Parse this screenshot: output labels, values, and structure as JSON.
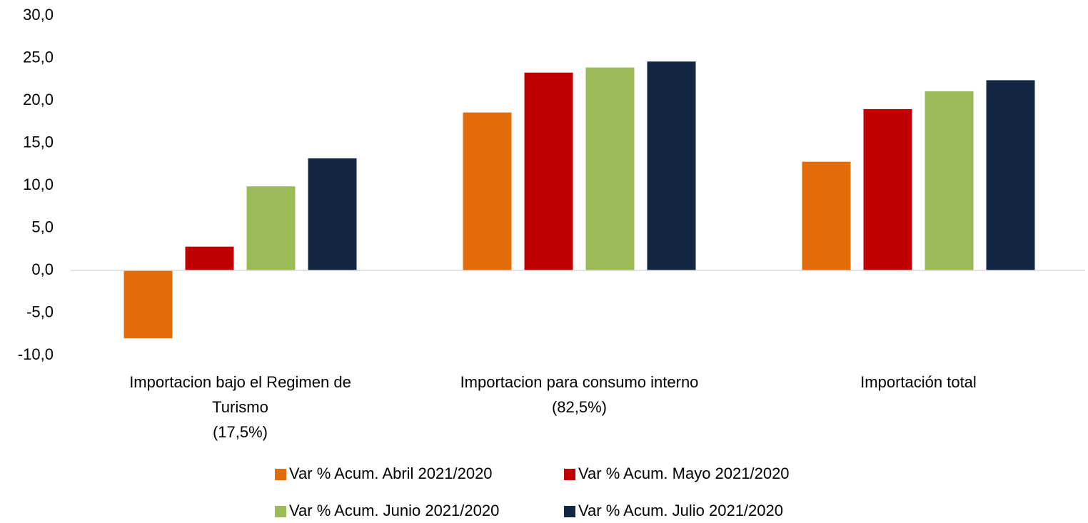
{
  "chart_data": {
    "type": "bar",
    "categories": [
      "Importacion bajo el Regimen de\nTurismo\n(17,5%)",
      "Importacion para consumo interno\n(82,5%)",
      "Importación total"
    ],
    "series": [
      {
        "name": "Var % Acum. Abril 2021/2020",
        "color": "#e36c0a",
        "values": [
          -8.0,
          18.6,
          12.8
        ]
      },
      {
        "name": "Var % Acum. Mayo 2021/2020",
        "color": "#c00000",
        "values": [
          2.8,
          23.3,
          19.0
        ]
      },
      {
        "name": "Var % Acum. Junio 2021/2020",
        "color": "#9bbb59",
        "values": [
          9.9,
          23.9,
          21.1
        ]
      },
      {
        "name": "Var % Acum. Julio 2021/2020",
        "color": "#132742",
        "values": [
          13.2,
          24.6,
          22.4
        ]
      }
    ],
    "ylim": [
      -10,
      30
    ],
    "yticks": [
      {
        "value": -10,
        "label": "-10,0"
      },
      {
        "value": -5,
        "label": "-5,0"
      },
      {
        "value": 0,
        "label": "0,0"
      },
      {
        "value": 5,
        "label": "5,0"
      },
      {
        "value": 10,
        "label": "10,0"
      },
      {
        "value": 15,
        "label": "15,0"
      },
      {
        "value": 20,
        "label": "20,0"
      },
      {
        "value": 25,
        "label": "25,0"
      },
      {
        "value": 30,
        "label": "30,0"
      }
    ],
    "grid": false,
    "legend": "bottom"
  }
}
